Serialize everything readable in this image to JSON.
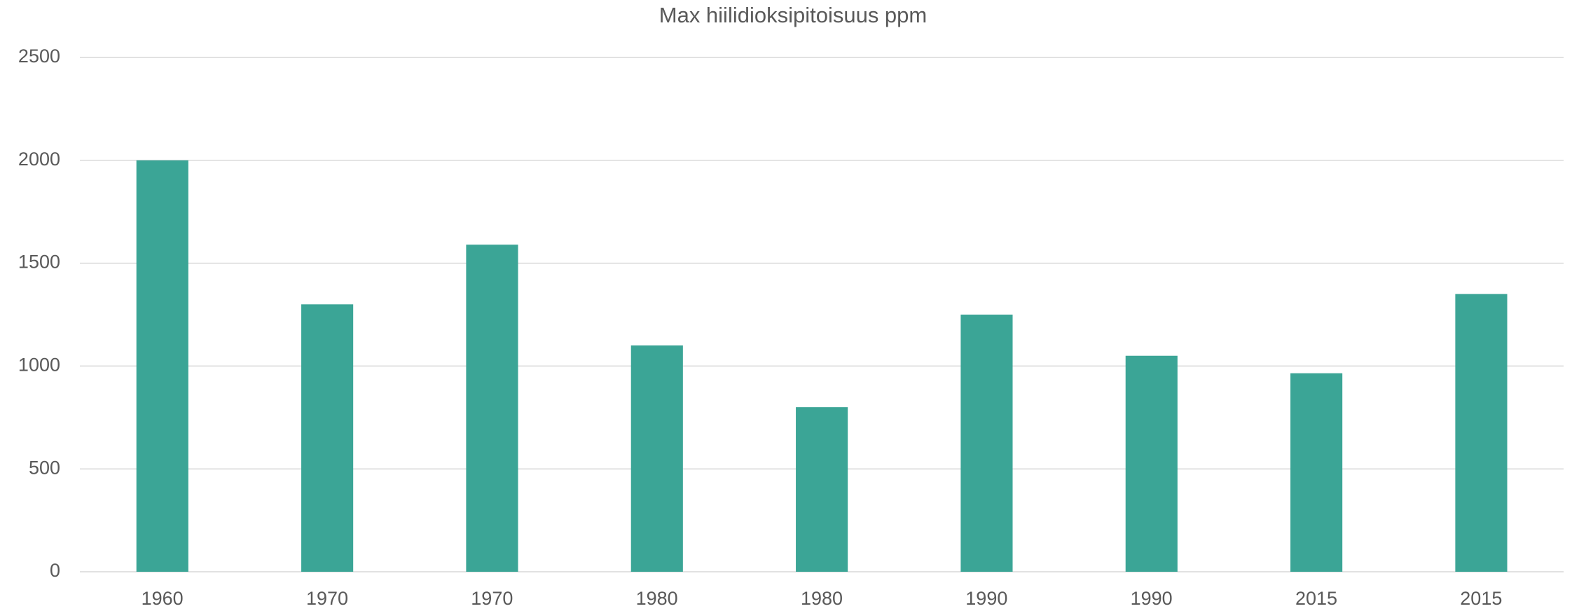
{
  "chart_data": {
    "type": "bar",
    "title": "Max hiilidioksipitoisuus ppm",
    "categories": [
      "1960",
      "1970",
      "1970",
      "1980",
      "1980",
      "1990",
      "1990",
      "2015",
      "2015"
    ],
    "values": [
      2000,
      1300,
      1590,
      1100,
      800,
      1250,
      1050,
      965,
      1350
    ],
    "color": "#3ba596",
    "ylim": [
      0,
      2500
    ],
    "yticks": [
      0,
      500,
      1000,
      1500,
      2000,
      2500
    ],
    "grid": true
  }
}
